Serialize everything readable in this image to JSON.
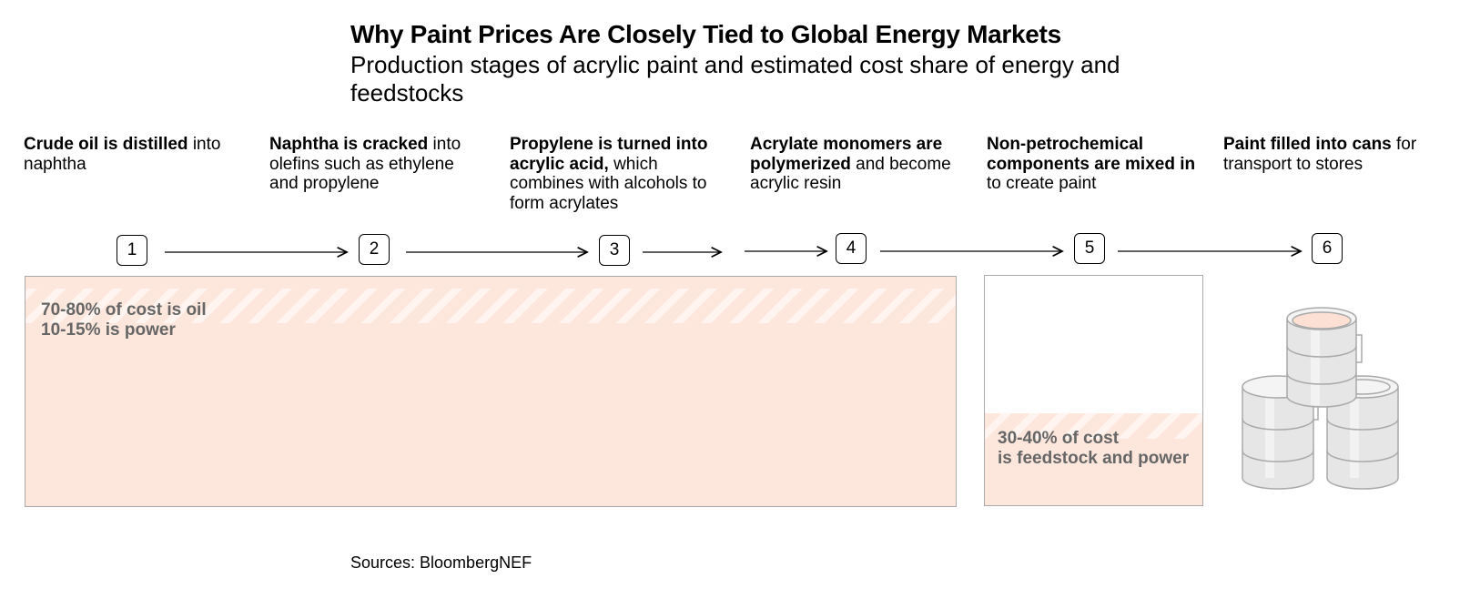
{
  "header": {
    "title": "Why Paint Prices Are Closely Tied to Global Energy Markets",
    "subtitle": "Production stages of acrylic paint and estimated cost share of energy and feedstocks"
  },
  "stages": [
    {
      "number": "1",
      "bold": "Crude oil is distilled",
      "text": "into naphtha"
    },
    {
      "number": "2",
      "bold": "Naphtha is cracked",
      "text": "into olefins such as ethylene and propylene"
    },
    {
      "number": "3",
      "bold": "Propylene is turned into acrylic acid,",
      "text": "which combines with alcohols to form acrylates"
    },
    {
      "number": "4",
      "bold": "Acrylate monomers are polymerized",
      "text": "and become acrylic resin"
    },
    {
      "number": "5",
      "bold": "Non-petrochemical components are mixed in",
      "text": "to create paint"
    },
    {
      "number": "6",
      "bold": "Paint filled into cans",
      "text": "for transport to stores"
    }
  ],
  "boxes": [
    {
      "lines": [
        "70-80% of cost is oil",
        "10-15% is power"
      ]
    },
    {
      "lines": [
        "30-40% of cost",
        "is feedstock and power"
      ]
    }
  ],
  "footer": {
    "source": "Sources: BloombergNEF"
  }
}
